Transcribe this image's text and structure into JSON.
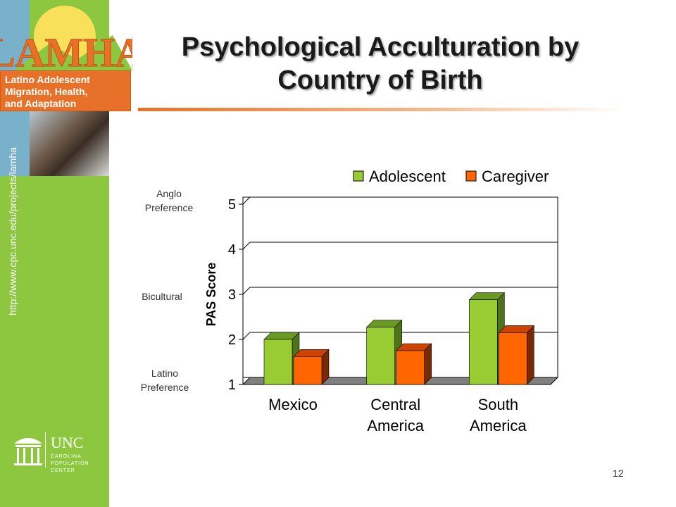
{
  "logo": {
    "wordmark": "LAMHA",
    "line1": "Latino Adolescent",
    "line2": "Migration, Health,",
    "line3": "and Adaptation",
    "url": "http://www.cpc.unc.edu/projects/lamha"
  },
  "unc": {
    "name": "UNC",
    "sub1": "CAROLINA",
    "sub2": "POPULATION",
    "sub3": "CENTER"
  },
  "slide": {
    "title_line1": "Psychological Acculturation by",
    "title_line2": "Country of Birth",
    "number": "12"
  },
  "preference_labels": {
    "anglo": [
      "Anglo",
      "Preference"
    ],
    "bicultural": "Bicultural",
    "latino": [
      "Latino",
      "Preference"
    ]
  },
  "chart_data": {
    "type": "bar",
    "categories": [
      [
        "Mexico"
      ],
      [
        "Central",
        "America"
      ],
      [
        "South",
        "America"
      ]
    ],
    "series": [
      {
        "name": "Adolescent",
        "values": [
          2.0,
          2.27,
          2.88
        ],
        "color": "#99cc33",
        "top_color": "#6b9a22",
        "side_color": "#4f7318"
      },
      {
        "name": "Caregiver",
        "values": [
          1.62,
          1.75,
          2.15
        ],
        "color": "#ff6600",
        "top_color": "#cc4400",
        "side_color": "#7a2a00"
      }
    ],
    "ylabel": "PAS Score",
    "xlabel": "",
    "ylim": [
      1,
      5
    ],
    "yticks": [
      1,
      2,
      3,
      4,
      5
    ],
    "grid": true,
    "legend_position": "top",
    "three_d": true
  }
}
